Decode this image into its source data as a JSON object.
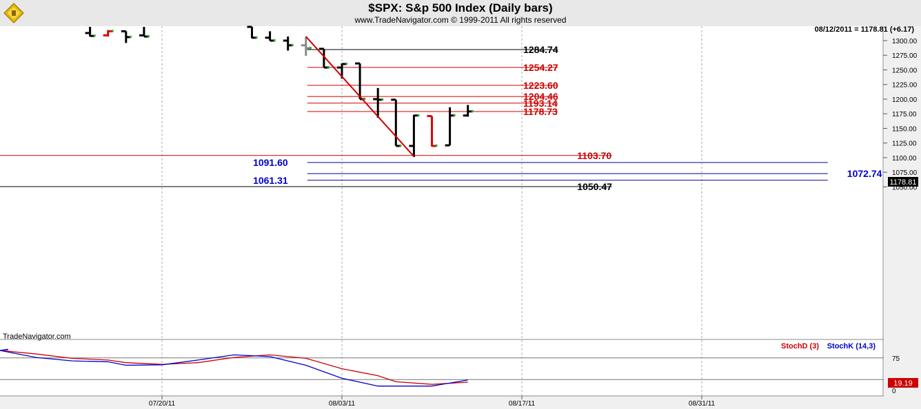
{
  "header": {
    "title": "$SPX:  S&p 500 Index  (Daily bars)",
    "copyright": "www.TradeNavigator.com © 1999-2011 All rights reserved",
    "logo_icon": "trade-navigator-logo"
  },
  "chart_data": [
    {
      "type": "ohlc",
      "title": "$SPX:  S&p 500 Index  (Daily bars)",
      "status_text": "08/12/2011 = 1178.81 (+6.17)",
      "last_price_label": "1178.81",
      "watermark": "TradeNavigator.com",
      "ylim": [
        1040,
        1310
      ],
      "y_ticks": [
        1300,
        1275,
        1250,
        1225,
        1200,
        1175,
        1150,
        1125,
        1100,
        1075,
        1050
      ],
      "y_tick_labels": [
        "1300.00",
        "1275.00",
        "1250.00",
        "1225.00",
        "1200.00",
        "1175.00",
        "1150.00",
        "1125.00",
        "1100.00",
        "1075.00",
        "1050.00"
      ],
      "x_tick_labels": [
        "07/20/11",
        "08/03/11",
        "08/17/11",
        "08/31/11"
      ],
      "grid": true,
      "colors": {
        "up": "#000000",
        "down": "#dd0000",
        "projected": "#888888",
        "bar_close": "#22aa22"
      },
      "bars": [
        {
          "date": "07/14/11",
          "open": 1313,
          "high": 1327,
          "low": 1307,
          "close": 1308,
          "color": "black"
        },
        {
          "date": "07/15/11",
          "open": 1309,
          "high": 1318,
          "low": 1307,
          "close": 1316,
          "color": "red"
        },
        {
          "date": "07/18/11",
          "open": 1316,
          "high": 1316,
          "low": 1296,
          "close": 1306,
          "color": "black"
        },
        {
          "date": "07/19/11",
          "open": 1309,
          "high": 1327,
          "low": 1307,
          "close": 1307,
          "color": "black"
        },
        {
          "date": "07/27/11",
          "open": 1330,
          "high": 1330,
          "low": 1304,
          "close": 1305,
          "color": "black"
        },
        {
          "date": "07/28/11",
          "open": 1305,
          "high": 1316,
          "low": 1300,
          "close": 1300,
          "color": "black"
        },
        {
          "date": "07/29/11",
          "open": 1300,
          "high": 1307,
          "low": 1283,
          "close": 1292,
          "color": "black"
        },
        {
          "date": "08/01/11",
          "open": 1292,
          "high": 1307,
          "low": 1274,
          "close": 1287,
          "color": "grey"
        },
        {
          "date": "08/02/11",
          "open": 1286,
          "high": 1286,
          "low": 1254,
          "close": 1254,
          "color": "black"
        },
        {
          "date": "08/03/11",
          "open": 1254,
          "high": 1261,
          "low": 1235,
          "close": 1260,
          "color": "black"
        },
        {
          "date": "08/04/11",
          "open": 1261,
          "high": 1261,
          "low": 1200,
          "close": 1200,
          "color": "black"
        },
        {
          "date": "08/05/11",
          "open": 1200,
          "high": 1219,
          "low": 1168,
          "close": 1199,
          "color": "black"
        },
        {
          "date": "08/08/11",
          "open": 1199,
          "high": 1199,
          "low": 1120,
          "close": 1120,
          "color": "black"
        },
        {
          "date": "08/09/11",
          "open": 1120,
          "high": 1173,
          "low": 1101,
          "close": 1172,
          "color": "black"
        },
        {
          "date": "08/10/11",
          "open": 1171,
          "high": 1171,
          "low": 1119,
          "close": 1120,
          "color": "red"
        },
        {
          "date": "08/11/11",
          "open": 1121,
          "high": 1186,
          "low": 1121,
          "close": 1172,
          "color": "black"
        },
        {
          "date": "08/12/11",
          "open": 1172,
          "high": 1190,
          "low": 1170,
          "close": 1179,
          "color": "black"
        }
      ],
      "trendline": {
        "from": {
          "date": "08/01/11",
          "value": 1307
        },
        "to": {
          "date": "08/09/11",
          "value": 1102
        },
        "color": "#cc0000"
      },
      "levels": [
        {
          "value": 1284.74,
          "label": "1284.74",
          "color": "#000000",
          "line_color": "#000000",
          "start": "08/01/11",
          "end": "08/21/11",
          "label_at": "08/17/11"
        },
        {
          "value": 1254.27,
          "label": "1254.27",
          "color": "#cc0000",
          "line_color": "#cc0000",
          "start": "08/01/11",
          "end": "08/21/11",
          "label_at": "08/17/11"
        },
        {
          "value": 1223.6,
          "label": "1223.60",
          "color": "#cc0000",
          "line_color": "#cc0000",
          "start": "08/01/11",
          "end": "08/21/11",
          "label_at": "08/17/11"
        },
        {
          "value": 1204.46,
          "label": "1204.46",
          "color": "#cc0000",
          "line_color": "#cc0000",
          "start": "08/01/11",
          "end": "08/21/11",
          "label_at": "08/17/11"
        },
        {
          "value": 1193.14,
          "label": "1193.14",
          "color": "#cc0000",
          "line_color": "#cc0000",
          "start": "08/01/11",
          "end": "08/21/11",
          "label_at": "08/17/11"
        },
        {
          "value": 1178.73,
          "label": "1178.73",
          "color": "#cc0000",
          "line_color": "#cc0000",
          "start": "08/01/11",
          "end": "08/21/11",
          "label_at": "08/17/11"
        },
        {
          "value": 1103.7,
          "label": "1103.70",
          "color": "#cc0000",
          "line_color": "#cc0000",
          "start": "07/05/11",
          "end": "08/24/11",
          "label_at": "08/22/11"
        },
        {
          "value": 1091.6,
          "label": "1091.60",
          "color": "#0000cc",
          "line_color": "#000099",
          "start": "08/01/11",
          "end": "09/09/11",
          "label_at": "07/29/11",
          "label_side": "left"
        },
        {
          "value": 1072.74,
          "label": "1072.74",
          "color": "#0000cc",
          "line_color": "#000099",
          "start": "08/01/11",
          "end": "09/09/11",
          "label_at": "09/12/11"
        },
        {
          "value": 1061.31,
          "label": "1061.31",
          "color": "#0000cc",
          "line_color": "#000099",
          "start": "08/01/11",
          "end": "09/09/11",
          "label_at": "07/29/11",
          "label_side": "left"
        },
        {
          "value": 1050.47,
          "label": "1050.47",
          "color": "#000000",
          "line_color": "#000000",
          "start": "07/05/11",
          "end": "08/24/11",
          "label_at": "08/22/11"
        }
      ]
    },
    {
      "type": "line",
      "title": "",
      "ylim": [
        0,
        100
      ],
      "y_ticks": [
        75,
        25,
        0
      ],
      "y_tick_labels": [
        "75",
        "",
        "0"
      ],
      "ref_lines": [
        75,
        25
      ],
      "last_value_label": "19.19",
      "series": [
        {
          "name": "StochD (3)",
          "color": "#cc0000",
          "points": [
            [
              "07/05/11",
              94
            ],
            [
              "07/07/11",
              92
            ],
            [
              "07/11/11",
              84
            ],
            [
              "07/13/11",
              74
            ],
            [
              "07/15/11",
              70
            ],
            [
              "07/18/11",
              64
            ],
            [
              "07/20/11",
              60
            ],
            [
              "07/22/11",
              64
            ],
            [
              "07/26/11",
              76
            ],
            [
              "07/28/11",
              82
            ],
            [
              "08/01/11",
              74
            ],
            [
              "08/03/11",
              50
            ],
            [
              "08/05/11",
              34
            ],
            [
              "08/08/11",
              20
            ],
            [
              "08/10/11",
              14
            ],
            [
              "08/12/11",
              19
            ]
          ]
        },
        {
          "name": "StochK (14,3)",
          "color": "#0000cc",
          "points": [
            [
              "07/05/11",
              95
            ],
            [
              "07/07/11",
              92
            ],
            [
              "07/11/11",
              76
            ],
            [
              "07/13/11",
              68
            ],
            [
              "07/15/11",
              66
            ],
            [
              "07/18/11",
              58
            ],
            [
              "07/20/11",
              59
            ],
            [
              "07/22/11",
              70
            ],
            [
              "07/26/11",
              82
            ],
            [
              "07/28/11",
              78
            ],
            [
              "08/01/11",
              58
            ],
            [
              "08/03/11",
              28
            ],
            [
              "08/05/11",
              10
            ],
            [
              "08/08/11",
              10
            ],
            [
              "08/10/11",
              10
            ],
            [
              "08/12/11",
              24
            ]
          ]
        }
      ]
    }
  ]
}
